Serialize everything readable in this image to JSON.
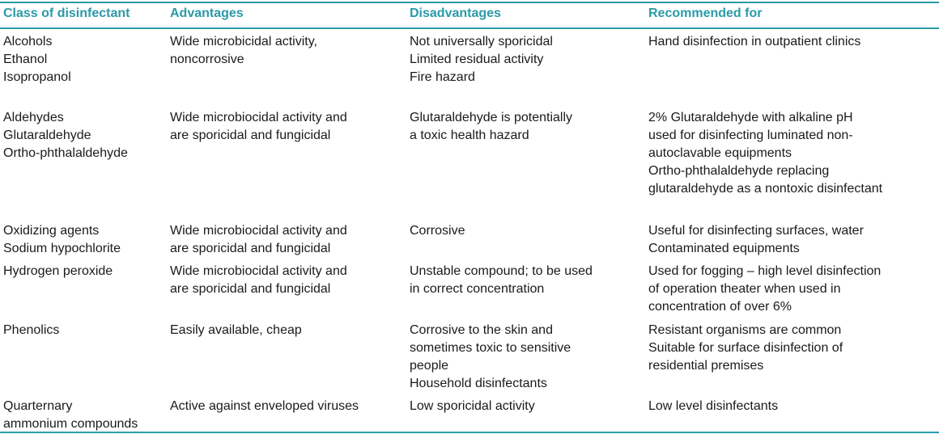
{
  "table": {
    "headers": [
      "Class of disinfectant",
      "Advantages",
      "Disadvantages",
      "Recommended for"
    ],
    "rows": [
      {
        "class": "Alcohols\nEthanol\nIsopropanol",
        "advantages": "Wide microbicidal activity,\nnoncorrosive",
        "disadvantages": "Not universally sporicidal\nLimited residual activity\nFire hazard",
        "recommended": "Hand disinfection in outpatient clinics"
      },
      {
        "class": "Aldehydes\nGlutaraldehyde\nOrtho-phthalaldehyde",
        "advantages": "Wide microbiocidal activity and\nare sporicidal and fungicidal",
        "disadvantages": "Glutaraldehyde is potentially\na toxic health hazard",
        "recommended": "2% Glutaraldehyde with alkaline pH\nused for disinfecting luminated non-\nautoclavable equipments\nOrtho-phthalaldehyde replacing\nglutaraldehyde as a nontoxic disinfectant"
      },
      {
        "class": "Oxidizing agents\nSodium hypochlorite",
        "advantages": "Wide microbiocidal activity and\nare sporicidal and fungicidal",
        "disadvantages": "Corrosive",
        "recommended": "Useful for disinfecting surfaces, water\nContaminated equipments"
      },
      {
        "class": "Hydrogen peroxide",
        "advantages": "Wide microbiocidal activity and\nare sporicidal and fungicidal",
        "disadvantages": "Unstable compound; to be used\nin correct concentration",
        "recommended": "Used for fogging – high level disinfection\nof operation theater when used in\nconcentration of over 6%"
      },
      {
        "class": "Phenolics",
        "advantages": "Easily available, cheap",
        "disadvantages": "Corrosive to the skin and\nsometimes toxic to sensitive\npeople\nHousehold disinfectants",
        "recommended": "Resistant organisms are common\nSuitable for surface disinfection of\nresidential premises"
      },
      {
        "class": "Quarternary\nammonium compounds",
        "advantages": "Active against enveloped viruses",
        "disadvantages": "Low sporicidal activity",
        "recommended": "Low level disinfectants"
      }
    ]
  },
  "colors": {
    "accent": "#2a9aa8",
    "text": "#1a1a1a"
  }
}
